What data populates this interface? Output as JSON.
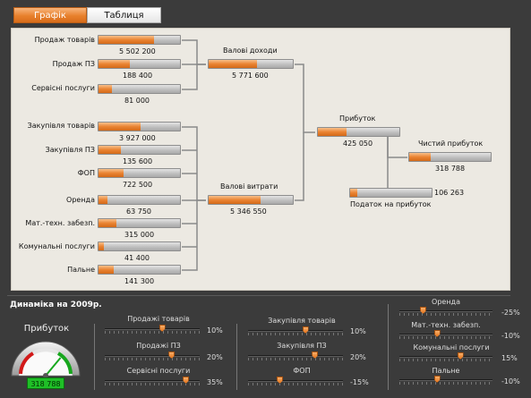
{
  "tabs": [
    {
      "label": "Графік",
      "active": true
    },
    {
      "label": "Таблиця",
      "active": false
    }
  ],
  "inputs": [
    {
      "label": "Продаж товарів",
      "value": "5 502 200",
      "fill": 0.68
    },
    {
      "label": "Продаж ПЗ",
      "value": "188 400",
      "fill": 0.38
    },
    {
      "label": "Сервісні послуги",
      "value": "81 000",
      "fill": 0.16
    },
    {
      "label": "Закупівля товарів",
      "value": "3 927 000",
      "fill": 0.52
    },
    {
      "label": "Закупівля ПЗ",
      "value": "135 600",
      "fill": 0.28
    },
    {
      "label": "ФОП",
      "value": "722 500",
      "fill": 0.31
    },
    {
      "label": "Оренда",
      "value": "63 750",
      "fill": 0.11
    },
    {
      "label": "Мат.-техн. забезп.",
      "value": "315 000",
      "fill": 0.22
    },
    {
      "label": "Комунальні послуги",
      "value": "41 400",
      "fill": 0.07
    },
    {
      "label": "Пальне",
      "value": "141 300",
      "fill": 0.19
    }
  ],
  "aggregates": {
    "gross_income": {
      "label": "Валові доходи",
      "value": "5 771 600",
      "fill": 0.57
    },
    "gross_costs": {
      "label": "Валові витрати",
      "value": "5 346 550",
      "fill": 0.62
    },
    "profit": {
      "label": "Прибуток",
      "value": "425 050",
      "fill": 0.35
    },
    "net_profit": {
      "label": "Чистий прибуток",
      "value": "318 788",
      "fill": 0.26
    },
    "tax": {
      "label": "Податок на прибуток",
      "value": "106 263",
      "fill": 0.09
    }
  },
  "dynamics": {
    "title": "Динаміка на 2009р.",
    "gauge": {
      "title": "Прибуток",
      "value": "318 788",
      "level": 0.72
    },
    "sliders": [
      {
        "label": "Продажі товарів",
        "pct": "10%",
        "level": 0.6
      },
      {
        "label": "Продажі ПЗ",
        "pct": "20%",
        "level": 0.7
      },
      {
        "label": "Сервісні послуги",
        "pct": "35%",
        "level": 0.85
      },
      {
        "label": "Закупівля товарів",
        "pct": "10%",
        "level": 0.6
      },
      {
        "label": "Закупівля ПЗ",
        "pct": "20%",
        "level": 0.7
      },
      {
        "label": "ФОП",
        "pct": "-15%",
        "level": 0.33
      },
      {
        "label": "Оренда",
        "pct": "-25%",
        "level": 0.25
      },
      {
        "label": "Мат.-техн. забезп.",
        "pct": "-10%",
        "level": 0.4
      },
      {
        "label": "Комунальні послуги",
        "pct": "15%",
        "level": 0.65
      },
      {
        "label": "Пальне",
        "pct": "-10%",
        "level": 0.4
      }
    ]
  },
  "colors": {
    "accent": "#e8802c",
    "background": "#3b3b3b",
    "panel": "#ece9e2",
    "lcd": "#1fbf27"
  }
}
